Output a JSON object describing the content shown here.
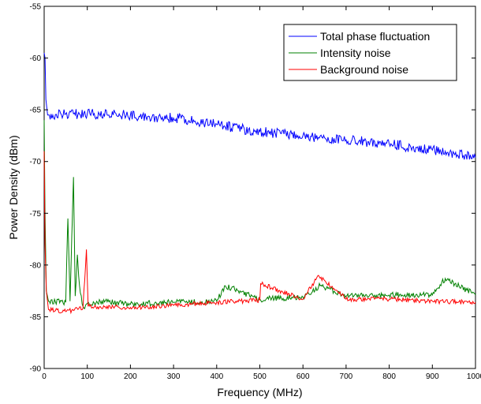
{
  "chart_data": {
    "type": "line",
    "xlabel": "Frequency (MHz)",
    "ylabel": "Power Density (dBm)",
    "xlim": [
      0,
      1000
    ],
    "ylim": [
      -90,
      -55
    ],
    "xticks": [
      0,
      100,
      200,
      300,
      400,
      500,
      600,
      700,
      800,
      900,
      1000
    ],
    "yticks": [
      -90,
      -85,
      -80,
      -75,
      -70,
      -65,
      -60,
      -55
    ],
    "grid": false,
    "legend_position": "top-right",
    "series": [
      {
        "name": "Total phase fluctuation",
        "color": "#0000ff",
        "points": [
          [
            0,
            -59.5
          ],
          [
            2,
            -60.0
          ],
          [
            4,
            -64.0
          ],
          [
            8,
            -65.5
          ],
          [
            20,
            -65.5
          ],
          [
            50,
            -65.4
          ],
          [
            100,
            -65.4
          ],
          [
            150,
            -65.5
          ],
          [
            200,
            -65.5
          ],
          [
            250,
            -65.7
          ],
          [
            300,
            -65.8
          ],
          [
            350,
            -66.1
          ],
          [
            400,
            -66.4
          ],
          [
            450,
            -66.8
          ],
          [
            500,
            -67.1
          ],
          [
            550,
            -67.3
          ],
          [
            600,
            -67.5
          ],
          [
            650,
            -67.7
          ],
          [
            700,
            -67.9
          ],
          [
            750,
            -68.1
          ],
          [
            800,
            -68.3
          ],
          [
            850,
            -68.6
          ],
          [
            900,
            -68.9
          ],
          [
            950,
            -69.2
          ],
          [
            1000,
            -69.6
          ]
        ]
      },
      {
        "name": "Intensity noise",
        "color": "#008000",
        "points": [
          [
            0,
            -66.0
          ],
          [
            2,
            -75.0
          ],
          [
            5,
            -82.5
          ],
          [
            10,
            -83.5
          ],
          [
            50,
            -83.6
          ],
          [
            55,
            -75.5
          ],
          [
            60,
            -83.5
          ],
          [
            65,
            -76.0
          ],
          [
            68,
            -71.5
          ],
          [
            72,
            -83.0
          ],
          [
            77,
            -79.0
          ],
          [
            82,
            -82.0
          ],
          [
            90,
            -84.0
          ],
          [
            130,
            -83.5
          ],
          [
            200,
            -83.8
          ],
          [
            300,
            -83.6
          ],
          [
            400,
            -83.5
          ],
          [
            420,
            -82.0
          ],
          [
            500,
            -83.3
          ],
          [
            600,
            -83.1
          ],
          [
            640,
            -82.0
          ],
          [
            700,
            -83.0
          ],
          [
            800,
            -82.9
          ],
          [
            900,
            -82.9
          ],
          [
            930,
            -81.3
          ],
          [
            1000,
            -82.9
          ]
        ]
      },
      {
        "name": "Background noise",
        "color": "#ff0000",
        "points": [
          [
            0,
            -69.0
          ],
          [
            2,
            -78.0
          ],
          [
            5,
            -82.5
          ],
          [
            10,
            -84.3
          ],
          [
            50,
            -84.5
          ],
          [
            90,
            -84.2
          ],
          [
            98,
            -78.5
          ],
          [
            102,
            -84.0
          ],
          [
            200,
            -84.1
          ],
          [
            300,
            -83.9
          ],
          [
            400,
            -83.6
          ],
          [
            500,
            -83.4
          ],
          [
            502,
            -81.8
          ],
          [
            600,
            -83.3
          ],
          [
            636,
            -81.0
          ],
          [
            700,
            -83.3
          ],
          [
            800,
            -83.3
          ],
          [
            900,
            -83.5
          ],
          [
            1000,
            -83.6
          ]
        ]
      }
    ]
  }
}
